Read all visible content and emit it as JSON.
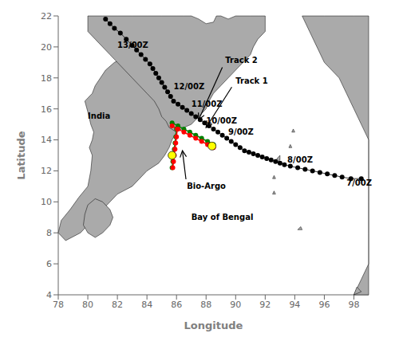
{
  "chart_data": {
    "type": "scatter",
    "xlabel": "Longitude",
    "ylabel": "Latitude",
    "xlim": [
      78,
      99
    ],
    "ylim": [
      4,
      22
    ],
    "xticks": [
      78,
      80,
      82,
      84,
      86,
      88,
      90,
      92,
      94,
      96,
      98
    ],
    "yticks": [
      4,
      6,
      8,
      10,
      12,
      14,
      16,
      18,
      20,
      22
    ],
    "grid": false,
    "series": [
      {
        "type": "polygon",
        "color": "#aaaaaa",
        "x": [
          78.0,
          78.2,
          78.8,
          79.4,
          80.0,
          80.2,
          80.3,
          80.1,
          80.3,
          80.4,
          80.2,
          80.0,
          79.8,
          80.3,
          80.5,
          81.2,
          81.8,
          82.5,
          83.0,
          83.5,
          84.0,
          84.8,
          85.3,
          85.5,
          85.8,
          86.0,
          85.7,
          85.5,
          85.2,
          84.8,
          84.0,
          83.5,
          83.0,
          82.0,
          81.0,
          80.5,
          80.0,
          79.5,
          78.5,
          78.0
        ],
        "values": [
          8.0,
          8.8,
          9.5,
          10.3,
          11.0,
          12.0,
          13.0,
          13.5,
          14.0,
          14.5,
          15.0,
          15.8,
          16.5,
          17.0,
          17.5,
          18.5,
          19.0,
          19.3,
          18.5,
          18.0,
          17.5,
          17.0,
          16.5,
          15.5,
          15.0,
          14.5,
          14.0,
          13.5,
          13.0,
          12.5,
          12.0,
          11.5,
          11.0,
          10.5,
          9.5,
          9.0,
          8.5,
          8.0,
          7.5,
          8.0
        ]
      },
      {
        "type": "polygon",
        "color": "#aaaaaa",
        "x": [
          86.0,
          86.5,
          87.0,
          87.5,
          88.0,
          88.5,
          88.7,
          89.0,
          89.5,
          90.0,
          90.3,
          91.0,
          91.5,
          91.7,
          92.0,
          92.0,
          91.5,
          91.2,
          91.0,
          90.5,
          90.0,
          89.5,
          89.0,
          88.5,
          88.2,
          88.0,
          87.5,
          87.0,
          86.5,
          86.0,
          85.5,
          85.3,
          85.0,
          84.8,
          84.5,
          84.0,
          83.5,
          83.0,
          82.5,
          82.0,
          81.5,
          81.0,
          80.5,
          80.0,
          80.0,
          81.0,
          82.0,
          83.0,
          84.0,
          85.0,
          86.0
        ],
        "values": [
          22.0,
          22.0,
          22.0,
          21.8,
          21.5,
          21.6,
          22.0,
          22.0,
          21.8,
          22.0,
          22.0,
          22.0,
          22.0,
          22.0,
          22.0,
          21.0,
          20.5,
          20.0,
          19.5,
          19.0,
          18.5,
          18.0,
          17.5,
          17.0,
          16.5,
          16.0,
          15.5,
          15.0,
          14.8,
          14.5,
          14.8,
          15.2,
          15.5,
          16.0,
          16.5,
          17.0,
          17.5,
          18.0,
          18.5,
          19.0,
          19.5,
          20.0,
          20.5,
          21.0,
          22.0,
          22.0,
          22.0,
          22.0,
          22.0,
          22.0,
          22.0
        ]
      },
      {
        "type": "polygon",
        "color": "#aaaaaa",
        "x": [
          80.0,
          79.8,
          79.7,
          80.0,
          80.5,
          81.0,
          81.5,
          81.7,
          81.5,
          81.0,
          80.5,
          80.0
        ],
        "values": [
          9.8,
          9.2,
          8.5,
          8.0,
          7.7,
          8.0,
          8.5,
          9.0,
          9.5,
          10.0,
          10.2,
          9.8
        ]
      },
      {
        "type": "polygon",
        "color": "#aaaaaa",
        "x": [
          98.0,
          98.5,
          99.0,
          99.0,
          99.0,
          99.0,
          99.0,
          98.5,
          98.0,
          97.5,
          97.0,
          96.5,
          96.0,
          95.5,
          95.0,
          94.5,
          95.0,
          96.0,
          97.0,
          98.0,
          99.0,
          99.0,
          98.0
        ],
        "values": [
          4.0,
          5.0,
          6.0,
          8.0,
          10.0,
          12.0,
          14.0,
          15.0,
          16.0,
          17.0,
          18.0,
          18.5,
          19.0,
          20.0,
          21.0,
          22.0,
          22.0,
          22.0,
          22.0,
          22.0,
          22.0,
          4.0,
          4.0
        ]
      },
      {
        "type": "polygon",
        "color": "#aaaaaa",
        "x": [
          92.7,
          92.8,
          93.0,
          93.0,
          92.7
        ],
        "values": [
          12.5,
          12.8,
          13.0,
          12.7,
          12.5
        ]
      },
      {
        "type": "polygon",
        "color": "#aaaaaa",
        "x": [
          93.6,
          93.7,
          93.8,
          93.6
        ],
        "values": [
          13.5,
          13.7,
          13.5,
          13.5
        ]
      },
      {
        "type": "polygon",
        "color": "#aaaaaa",
        "x": [
          93.8,
          93.9,
          94.0,
          93.8
        ],
        "values": [
          14.5,
          14.7,
          14.5,
          14.5
        ]
      },
      {
        "type": "polygon",
        "color": "#aaaaaa",
        "x": [
          92.5,
          92.6,
          92.7,
          92.5
        ],
        "values": [
          10.5,
          10.7,
          10.5,
          10.5
        ]
      },
      {
        "type": "polygon",
        "color": "#aaaaaa",
        "x": [
          92.5,
          92.6,
          92.7,
          92.5
        ],
        "values": [
          11.5,
          11.7,
          11.5,
          11.5
        ]
      },
      {
        "type": "polygon",
        "color": "#aaaaaa",
        "x": [
          94.2,
          94.4,
          94.5,
          94.2
        ],
        "values": [
          8.2,
          8.4,
          8.2,
          8.2
        ]
      },
      {
        "type": "polygon",
        "color": "#aaaaaa",
        "x": [
          98.0,
          98.2,
          98.5,
          98.0
        ],
        "values": [
          4.0,
          4.5,
          4.2,
          4.0
        ]
      },
      {
        "type": "line",
        "color": "black",
        "marker": "o",
        "line_style": "solid",
        "x": [
          98.5,
          97.8,
          97.2,
          96.7,
          96.2,
          95.7,
          95.2,
          94.7,
          94.2,
          93.7,
          93.3,
          93.0,
          92.7,
          92.4,
          92.1,
          91.8,
          91.5,
          91.2,
          90.9,
          90.6,
          90.3,
          90.0,
          89.7,
          89.4,
          89.1,
          88.8,
          88.5,
          88.2,
          87.9,
          87.6,
          87.3,
          87.0,
          86.7,
          86.4,
          86.1,
          85.8,
          85.6,
          85.4,
          85.2,
          85.0,
          84.8,
          84.6,
          84.4,
          84.2,
          83.9,
          83.6,
          83.3,
          83.0,
          82.6,
          82.2,
          81.8,
          81.5,
          81.2
        ],
        "values": [
          11.5,
          11.5,
          11.6,
          11.7,
          11.8,
          11.9,
          12.0,
          12.1,
          12.2,
          12.3,
          12.4,
          12.5,
          12.6,
          12.7,
          12.8,
          12.9,
          13.0,
          13.1,
          13.2,
          13.3,
          13.5,
          13.7,
          13.9,
          14.1,
          14.3,
          14.5,
          14.7,
          14.9,
          15.1,
          15.3,
          15.5,
          15.7,
          15.9,
          16.1,
          16.3,
          16.5,
          16.8,
          17.1,
          17.4,
          17.7,
          18.0,
          18.3,
          18.6,
          18.9,
          19.2,
          19.5,
          19.8,
          20.1,
          20.5,
          20.9,
          21.2,
          21.5,
          21.8
        ]
      },
      {
        "type": "line",
        "color": "green",
        "marker": "o",
        "line_style": "solid",
        "x": [
          85.7,
          86.1,
          86.5,
          86.9,
          87.3,
          87.7,
          88.1,
          88.5
        ],
        "values": [
          15.1,
          14.9,
          14.7,
          14.5,
          14.3,
          14.1,
          13.9,
          13.7
        ]
      },
      {
        "type": "line",
        "color": "red",
        "marker": "o",
        "line_style": "solid",
        "x": [
          85.7,
          86.1,
          86.5,
          86.9,
          87.3,
          87.7,
          88.1,
          88.5
        ],
        "values": [
          14.9,
          14.7,
          14.5,
          14.3,
          14.1,
          13.9,
          13.7,
          13.5
        ]
      },
      {
        "type": "line",
        "color": "green",
        "marker": "o",
        "line_style": "solid",
        "x": [
          85.7,
          85.75,
          85.8,
          85.85,
          85.9,
          85.95,
          86.0
        ],
        "values": [
          12.2,
          12.6,
          13.0,
          13.4,
          13.8,
          14.2,
          14.7
        ]
      },
      {
        "type": "line",
        "color": "red",
        "marker": "o",
        "line_style": "solid",
        "x": [
          85.75,
          85.8,
          85.85,
          85.9,
          85.95,
          86.0,
          86.05
        ],
        "values": [
          12.2,
          12.6,
          13.0,
          13.4,
          13.8,
          14.2,
          14.7
        ]
      },
      {
        "type": "scatter",
        "color": "yellow",
        "marker": "o",
        "x": [
          88.4,
          85.7
        ],
        "values": [
          13.6,
          13.0
        ]
      }
    ],
    "annotations": [
      {
        "text": "7/00Z",
        "x": 97.5,
        "y": 11.2
      },
      {
        "text": "8/00Z",
        "x": 93.5,
        "y": 12.7
      },
      {
        "text": "9/00Z",
        "x": 89.5,
        "y": 14.5
      },
      {
        "text": "10/00Z",
        "x": 88.0,
        "y": 15.2
      },
      {
        "text": "11/00Z",
        "x": 87.0,
        "y": 16.3
      },
      {
        "text": "12/00Z",
        "x": 85.8,
        "y": 17.4
      },
      {
        "text": "13/00Z",
        "x": 82.0,
        "y": 20.1
      },
      {
        "text": "India",
        "x": 80.0,
        "y": 15.5
      },
      {
        "text": "Bay of Bengal",
        "x": 87.0,
        "y": 9.0
      },
      {
        "text": "Bio-Argo",
        "x": 86.7,
        "y": 11.0,
        "arrow": [
          86.4,
          13.3
        ]
      },
      {
        "text": "Track 1",
        "x": 90.0,
        "y": 17.8,
        "arrow": [
          88.0,
          14.8
        ]
      },
      {
        "text": "Track 2",
        "x": 89.3,
        "y": 19.1,
        "arrow": [
          87.5,
          15.3
        ]
      }
    ]
  }
}
